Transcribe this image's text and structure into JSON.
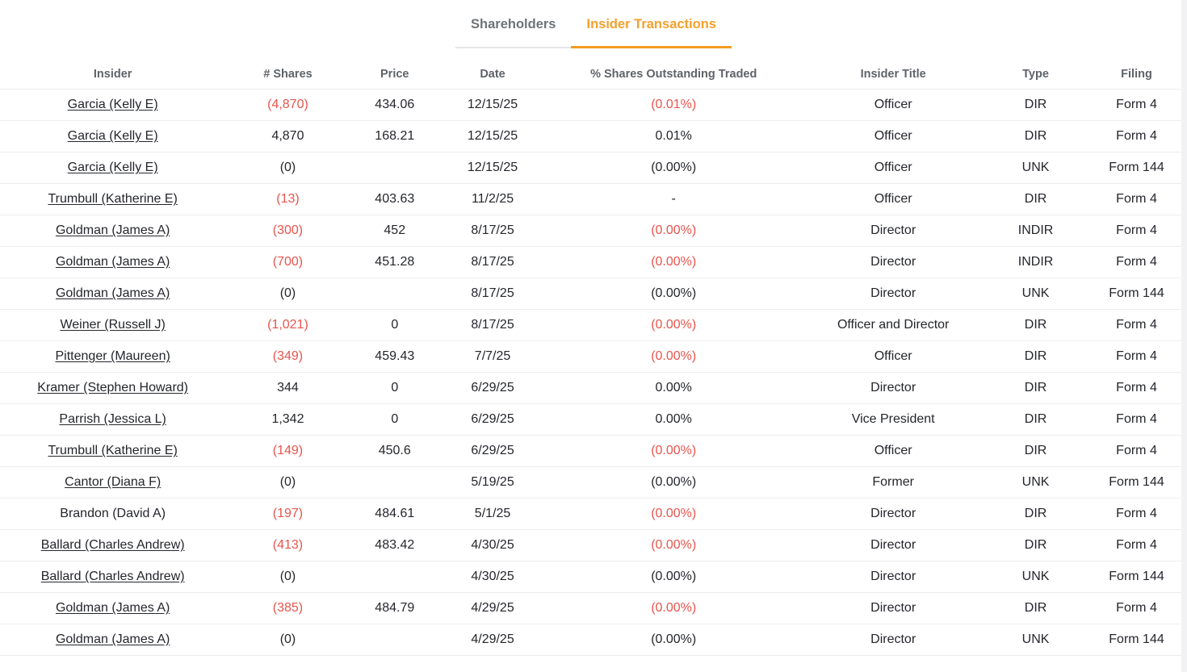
{
  "tabs": [
    {
      "label": "Shareholders",
      "active": false
    },
    {
      "label": "Insider Transactions",
      "active": true
    }
  ],
  "colors": {
    "active_tab_orange": "#F5A02C",
    "negative_red": "#E8544C",
    "inactive_tab_gray": "#6F7377",
    "header_text_gray": "#5F6368",
    "body_text": "#24262B"
  },
  "table": {
    "columns": [
      "Insider",
      "# Shares",
      "Price",
      "Date",
      "% Shares Outstanding Traded",
      "Insider Title",
      "Type",
      "Filing"
    ],
    "rows": [
      {
        "insider": "Garcia (Kelly E)",
        "link": true,
        "shares": "(4,870)",
        "shares_neg": true,
        "price": "434.06",
        "date": "12/15/25",
        "pct": "(0.01%)",
        "pct_neg": true,
        "title": "Officer",
        "type": "DIR",
        "filing": "Form 4"
      },
      {
        "insider": "Garcia (Kelly E)",
        "link": true,
        "shares": "4,870",
        "shares_neg": false,
        "price": "168.21",
        "date": "12/15/25",
        "pct": "0.01%",
        "pct_neg": false,
        "title": "Officer",
        "type": "DIR",
        "filing": "Form 4"
      },
      {
        "insider": "Garcia (Kelly E)",
        "link": true,
        "shares": "(0)",
        "shares_neg": false,
        "price": "",
        "date": "12/15/25",
        "pct": "(0.00%)",
        "pct_neg": false,
        "title": "Officer",
        "type": "UNK",
        "filing": "Form 144"
      },
      {
        "insider": "Trumbull (Katherine E)",
        "link": true,
        "shares": "(13)",
        "shares_neg": true,
        "price": "403.63",
        "date": "11/2/25",
        "pct": "-",
        "pct_neg": false,
        "title": "Officer",
        "type": "DIR",
        "filing": "Form 4"
      },
      {
        "insider": "Goldman (James A)",
        "link": true,
        "shares": "(300)",
        "shares_neg": true,
        "price": "452",
        "date": "8/17/25",
        "pct": "(0.00%)",
        "pct_neg": true,
        "title": "Director",
        "type": "INDIR",
        "filing": "Form 4"
      },
      {
        "insider": "Goldman (James A)",
        "link": true,
        "shares": "(700)",
        "shares_neg": true,
        "price": "451.28",
        "date": "8/17/25",
        "pct": "(0.00%)",
        "pct_neg": true,
        "title": "Director",
        "type": "INDIR",
        "filing": "Form 4"
      },
      {
        "insider": "Goldman (James A)",
        "link": true,
        "shares": "(0)",
        "shares_neg": false,
        "price": "",
        "date": "8/17/25",
        "pct": "(0.00%)",
        "pct_neg": false,
        "title": "Director",
        "type": "UNK",
        "filing": "Form 144"
      },
      {
        "insider": "Weiner (Russell J)",
        "link": true,
        "shares": "(1,021)",
        "shares_neg": true,
        "price": "0",
        "date": "8/17/25",
        "pct": "(0.00%)",
        "pct_neg": true,
        "title": "Officer and Director",
        "type": "DIR",
        "filing": "Form 4"
      },
      {
        "insider": "Pittenger (Maureen)",
        "link": true,
        "shares": "(349)",
        "shares_neg": true,
        "price": "459.43",
        "date": "7/7/25",
        "pct": "(0.00%)",
        "pct_neg": true,
        "title": "Officer",
        "type": "DIR",
        "filing": "Form 4"
      },
      {
        "insider": "Kramer (Stephen Howard)",
        "link": true,
        "shares": "344",
        "shares_neg": false,
        "price": "0",
        "date": "6/29/25",
        "pct": "0.00%",
        "pct_neg": false,
        "title": "Director",
        "type": "DIR",
        "filing": "Form 4"
      },
      {
        "insider": "Parrish (Jessica L)",
        "link": true,
        "shares": "1,342",
        "shares_neg": false,
        "price": "0",
        "date": "6/29/25",
        "pct": "0.00%",
        "pct_neg": false,
        "title": "Vice President",
        "type": "DIR",
        "filing": "Form 4"
      },
      {
        "insider": "Trumbull (Katherine E)",
        "link": true,
        "shares": "(149)",
        "shares_neg": true,
        "price": "450.6",
        "date": "6/29/25",
        "pct": "(0.00%)",
        "pct_neg": true,
        "title": "Officer",
        "type": "DIR",
        "filing": "Form 4"
      },
      {
        "insider": "Cantor (Diana F)",
        "link": true,
        "shares": "(0)",
        "shares_neg": false,
        "price": "",
        "date": "5/19/25",
        "pct": "(0.00%)",
        "pct_neg": false,
        "title": "Former",
        "type": "UNK",
        "filing": "Form 144"
      },
      {
        "insider": "Brandon (David A)",
        "link": false,
        "shares": "(197)",
        "shares_neg": true,
        "price": "484.61",
        "date": "5/1/25",
        "pct": "(0.00%)",
        "pct_neg": true,
        "title": "Director",
        "type": "DIR",
        "filing": "Form 4"
      },
      {
        "insider": "Ballard (Charles Andrew)",
        "link": true,
        "shares": "(413)",
        "shares_neg": true,
        "price": "483.42",
        "date": "4/30/25",
        "pct": "(0.00%)",
        "pct_neg": true,
        "title": "Director",
        "type": "DIR",
        "filing": "Form 4"
      },
      {
        "insider": "Ballard (Charles Andrew)",
        "link": true,
        "shares": "(0)",
        "shares_neg": false,
        "price": "",
        "date": "4/30/25",
        "pct": "(0.00%)",
        "pct_neg": false,
        "title": "Director",
        "type": "UNK",
        "filing": "Form 144"
      },
      {
        "insider": "Goldman (James A)",
        "link": true,
        "shares": "(385)",
        "shares_neg": true,
        "price": "484.79",
        "date": "4/29/25",
        "pct": "(0.00%)",
        "pct_neg": true,
        "title": "Director",
        "type": "DIR",
        "filing": "Form 4"
      },
      {
        "insider": "Goldman (James A)",
        "link": true,
        "shares": "(0)",
        "shares_neg": false,
        "price": "",
        "date": "4/29/25",
        "pct": "(0.00%)",
        "pct_neg": false,
        "title": "Director",
        "type": "UNK",
        "filing": "Form 144"
      }
    ]
  }
}
